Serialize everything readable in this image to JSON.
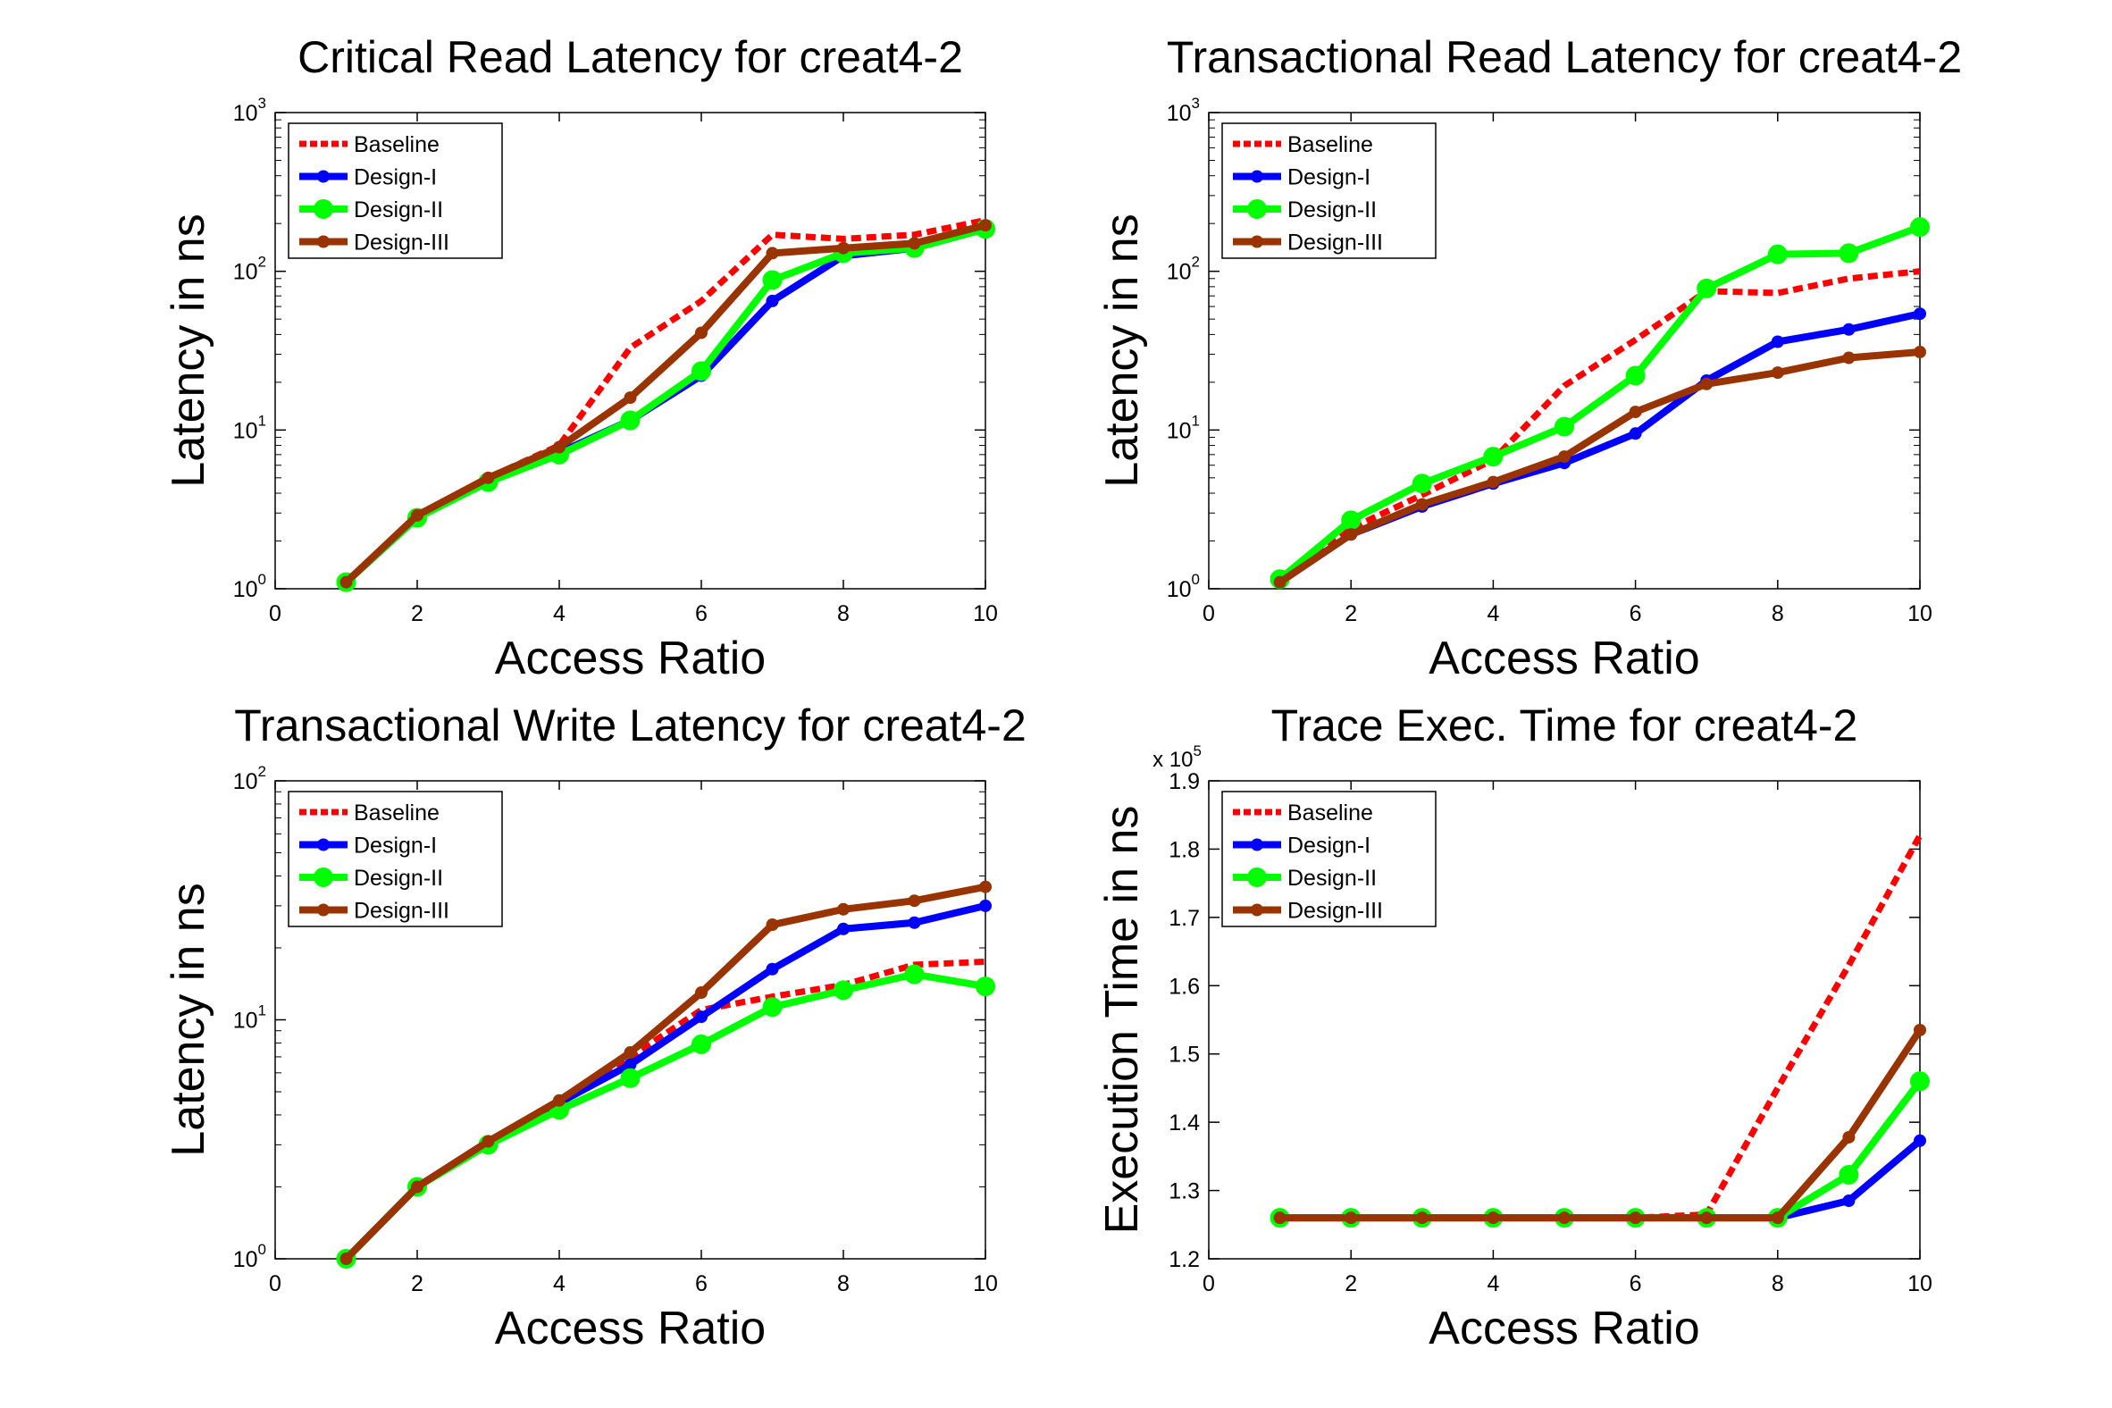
{
  "colors": {
    "Baseline": "#ff0000",
    "Design-I": "#0000ff",
    "Design-II": "#00ff00",
    "Design-III": "#993300"
  },
  "chart_data": [
    {
      "type": "line",
      "title": "Critical Read Latency for creat4-2",
      "xlabel": "Access Ratio",
      "ylabel": "Latency in ns",
      "yscale": "log",
      "xlim": [
        0,
        10
      ],
      "ylim": [
        1,
        1000
      ],
      "xticks": [
        0,
        2,
        4,
        6,
        8,
        10
      ],
      "yticks": [
        {
          "value": 1,
          "base": "10",
          "exp": "0"
        },
        {
          "value": 10,
          "base": "10",
          "exp": "1"
        },
        {
          "value": 100,
          "base": "10",
          "exp": "2"
        },
        {
          "value": 1000,
          "base": "10",
          "exp": "3"
        }
      ],
      "legend": "top-left",
      "x": [
        1,
        2,
        3,
        4,
        5,
        6,
        7,
        8,
        9,
        10
      ],
      "series": [
        {
          "name": "Baseline",
          "style": "dashed",
          "marker": "none",
          "values": [
            1.1,
            2.9,
            5,
            8,
            33,
            65,
            170,
            160,
            170,
            210
          ]
        },
        {
          "name": "Design-I",
          "style": "solid",
          "marker": "star",
          "values": [
            1.1,
            2.8,
            4.8,
            7.2,
            11.5,
            22,
            65,
            125,
            140,
            185
          ]
        },
        {
          "name": "Design-II",
          "style": "solid",
          "marker": "circle",
          "values": [
            1.1,
            2.8,
            4.7,
            7,
            11.5,
            23.5,
            88,
            130,
            140,
            185
          ]
        },
        {
          "name": "Design-III",
          "style": "solid",
          "marker": "dot",
          "values": [
            1.1,
            2.9,
            5,
            7.8,
            16,
            41,
            130,
            140,
            150,
            195
          ]
        }
      ]
    },
    {
      "type": "line",
      "title": "Transactional Read Latency for creat4-2",
      "xlabel": "Access Ratio",
      "ylabel": "Latency in ns",
      "yscale": "log",
      "xlim": [
        0,
        10
      ],
      "ylim": [
        1,
        1000
      ],
      "xticks": [
        0,
        2,
        4,
        6,
        8,
        10
      ],
      "yticks": [
        {
          "value": 1,
          "base": "10",
          "exp": "0"
        },
        {
          "value": 10,
          "base": "10",
          "exp": "1"
        },
        {
          "value": 100,
          "base": "10",
          "exp": "2"
        },
        {
          "value": 1000,
          "base": "10",
          "exp": "3"
        }
      ],
      "legend": "top-left",
      "x": [
        1,
        2,
        3,
        4,
        5,
        6,
        7,
        8,
        9,
        10
      ],
      "series": [
        {
          "name": "Baseline",
          "style": "dashed",
          "marker": "none",
          "values": [
            1.1,
            2.4,
            3.9,
            6.5,
            19,
            37,
            75,
            73,
            90,
            100
          ]
        },
        {
          "name": "Design-I",
          "style": "solid",
          "marker": "star",
          "values": [
            1.1,
            2.2,
            3.3,
            4.6,
            6.2,
            9.5,
            20.5,
            36,
            43,
            54
          ]
        },
        {
          "name": "Design-II",
          "style": "solid",
          "marker": "circle",
          "values": [
            1.15,
            2.7,
            4.6,
            6.8,
            10.5,
            22,
            78,
            128,
            130,
            190
          ]
        },
        {
          "name": "Design-III",
          "style": "solid",
          "marker": "dot",
          "values": [
            1.1,
            2.2,
            3.4,
            4.7,
            6.8,
            13,
            19.5,
            23,
            28.5,
            31
          ]
        }
      ]
    },
    {
      "type": "line",
      "title": "Transactional Write Latency for creat4-2",
      "xlabel": "Access Ratio",
      "ylabel": "Latency in ns",
      "yscale": "log",
      "xlim": [
        0,
        10
      ],
      "ylim": [
        1,
        100
      ],
      "xticks": [
        0,
        2,
        4,
        6,
        8,
        10
      ],
      "yticks": [
        {
          "value": 1,
          "base": "10",
          "exp": "0"
        },
        {
          "value": 10,
          "base": "10",
          "exp": "1"
        },
        {
          "value": 100,
          "base": "10",
          "exp": "2"
        }
      ],
      "legend": "top-left",
      "x": [
        1,
        2,
        3,
        4,
        5,
        6,
        7,
        8,
        9,
        10
      ],
      "series": [
        {
          "name": "Baseline",
          "style": "dashed",
          "marker": "none",
          "values": [
            1,
            2,
            3.1,
            4.5,
            7,
            11,
            12.5,
            14,
            17,
            17.5
          ]
        },
        {
          "name": "Design-I",
          "style": "solid",
          "marker": "star",
          "values": [
            1,
            2,
            3.1,
            4.5,
            6.5,
            10.3,
            16.3,
            24,
            25.5,
            30
          ]
        },
        {
          "name": "Design-II",
          "style": "solid",
          "marker": "circle",
          "values": [
            1,
            2,
            3,
            4.2,
            5.7,
            7.9,
            11.3,
            13.3,
            15.5,
            13.8
          ]
        },
        {
          "name": "Design-III",
          "style": "solid",
          "marker": "dot",
          "values": [
            1,
            2,
            3.1,
            4.6,
            7.3,
            13,
            25,
            29,
            31.5,
            36
          ]
        }
      ]
    },
    {
      "type": "line",
      "title": "Trace Exec. Time for creat4-2",
      "xlabel": "Access Ratio",
      "ylabel": "Execution Time in ns",
      "yscale": "linear",
      "xlim": [
        0,
        10
      ],
      "ylim": [
        1.2,
        1.9
      ],
      "ymultiplier": {
        "base": "x 10",
        "exp": "5"
      },
      "xticks": [
        0,
        2,
        4,
        6,
        8,
        10
      ],
      "yticks": [
        {
          "value": 1.2,
          "label": "1.2"
        },
        {
          "value": 1.3,
          "label": "1.3"
        },
        {
          "value": 1.4,
          "label": "1.4"
        },
        {
          "value": 1.5,
          "label": "1.5"
        },
        {
          "value": 1.6,
          "label": "1.6"
        },
        {
          "value": 1.7,
          "label": "1.7"
        },
        {
          "value": 1.8,
          "label": "1.8"
        },
        {
          "value": 1.9,
          "label": "1.9"
        }
      ],
      "legend": "top-left",
      "x": [
        1,
        2,
        3,
        4,
        5,
        6,
        7,
        8,
        9,
        10
      ],
      "series": [
        {
          "name": "Baseline",
          "style": "dashed",
          "marker": "none",
          "values": [
            1.26,
            1.26,
            1.26,
            1.26,
            1.26,
            1.26,
            1.265,
            1.45,
            1.63,
            1.82
          ]
        },
        {
          "name": "Design-I",
          "style": "solid",
          "marker": "star",
          "values": [
            1.26,
            1.26,
            1.26,
            1.26,
            1.26,
            1.26,
            1.26,
            1.26,
            1.285,
            1.373
          ]
        },
        {
          "name": "Design-II",
          "style": "solid",
          "marker": "circle",
          "values": [
            1.26,
            1.26,
            1.26,
            1.26,
            1.26,
            1.26,
            1.26,
            1.26,
            1.323,
            1.46
          ]
        },
        {
          "name": "Design-III",
          "style": "solid",
          "marker": "dot",
          "values": [
            1.26,
            1.26,
            1.26,
            1.26,
            1.26,
            1.26,
            1.26,
            1.26,
            1.378,
            1.535
          ]
        }
      ]
    }
  ]
}
